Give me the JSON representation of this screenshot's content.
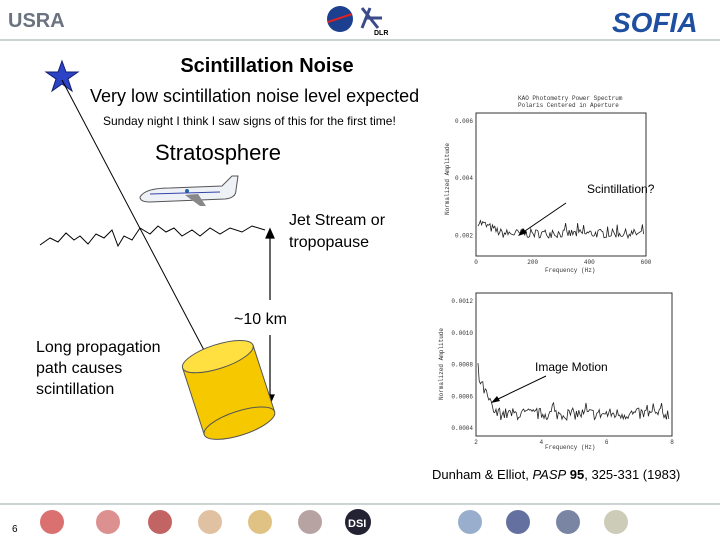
{
  "header": {
    "usra": "USRA",
    "dlr": "DLR",
    "sofia": "SOFIA"
  },
  "title": "Scintillation Noise",
  "subtitle": "Very low scintillation noise level expected",
  "note": "Sunday night I think I saw signs of this for the first time!",
  "labels": {
    "stratosphere": "Stratosphere",
    "jet_stream": [
      "Jet Stream or",
      "tropopause"
    ],
    "distance": "~10 km",
    "propagation": [
      "Long propagation",
      "path causes",
      "scintillation"
    ],
    "scintillation_callout": "Scintillation?",
    "image_motion_callout": "Image Motion"
  },
  "plots": [
    {
      "title": [
        "KAO Photometry Power Spectrum",
        "Polaris Centered in Aperture"
      ],
      "ylabel": "Normalized Amplitude",
      "xlabel": "Frequency (Hz)",
      "yticks": [
        "0.006",
        "0.004",
        "0.002"
      ],
      "xticks": [
        "0",
        "200",
        "400",
        "600"
      ]
    },
    {
      "ylabel": "Normalized Amplitude",
      "xlabel": "Frequency (Hz)",
      "yticks": [
        "0.0012",
        "0.0010",
        "0.0008",
        "0.0006",
        "0.0004"
      ],
      "xticks": [
        "2",
        "4",
        "6",
        "8"
      ]
    }
  ],
  "citation": {
    "authors": "Dunham & Elliot, ",
    "journal": "PASP",
    "volume": "95",
    "pages": ", 325-331 (1983)"
  },
  "footer": {
    "page": "6",
    "dsi": "DSI"
  }
}
